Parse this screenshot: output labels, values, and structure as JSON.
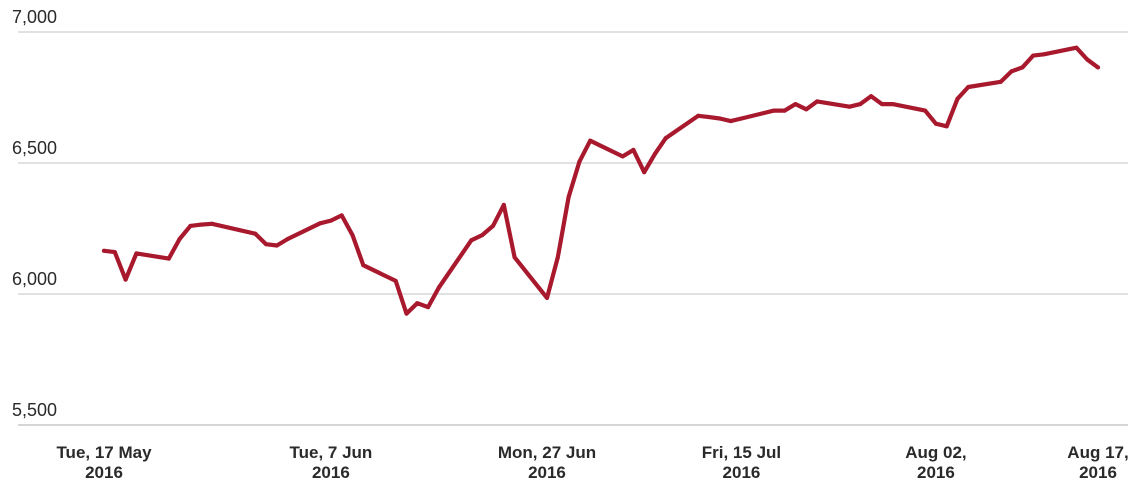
{
  "chart_data": {
    "type": "line",
    "title": "",
    "xlabel": "",
    "ylabel": "",
    "ylim": [
      5500,
      7000
    ],
    "grid": true,
    "legend": "none",
    "y_ticks": [
      "5,500",
      "6,000",
      "6,500",
      "7,000"
    ],
    "y_tick_values": [
      5500,
      6000,
      6500,
      7000
    ],
    "x_ticks": [
      {
        "line1": "Tue, 17 May",
        "line2": "2016",
        "date": "2016-05-17"
      },
      {
        "line1": "Tue, 7 Jun",
        "line2": "2016",
        "date": "2016-06-07"
      },
      {
        "line1": "Mon, 27 Jun",
        "line2": "2016",
        "date": "2016-06-27"
      },
      {
        "line1": "Fri, 15 Jul",
        "line2": "2016",
        "date": "2016-07-15"
      },
      {
        "line1": "Aug 02,",
        "line2": "2016",
        "date": "2016-08-02"
      },
      {
        "line1": "Aug 17,",
        "line2": "2016",
        "date": "2016-08-17"
      }
    ],
    "colors": {
      "line": "#a8192e",
      "grid": "#d7d7d7",
      "text": "#2a2a2a"
    },
    "series": [
      {
        "x": [
          "2016-05-17",
          "2016-05-18",
          "2016-05-19",
          "2016-05-20",
          "2016-05-23",
          "2016-05-24",
          "2016-05-25",
          "2016-05-26",
          "2016-05-27",
          "2016-05-31",
          "2016-06-01",
          "2016-06-02",
          "2016-06-03",
          "2016-06-06",
          "2016-06-07",
          "2016-06-08",
          "2016-06-09",
          "2016-06-10",
          "2016-06-13",
          "2016-06-14",
          "2016-06-15",
          "2016-06-16",
          "2016-06-17",
          "2016-06-20",
          "2016-06-21",
          "2016-06-22",
          "2016-06-23",
          "2016-06-24",
          "2016-06-27",
          "2016-06-28",
          "2016-06-29",
          "2016-06-30",
          "2016-07-01",
          "2016-07-04",
          "2016-07-05",
          "2016-07-06",
          "2016-07-07",
          "2016-07-08",
          "2016-07-11",
          "2016-07-12",
          "2016-07-13",
          "2016-07-14",
          "2016-07-15",
          "2016-07-18",
          "2016-07-19",
          "2016-07-20",
          "2016-07-21",
          "2016-07-22",
          "2016-07-25",
          "2016-07-26",
          "2016-07-27",
          "2016-07-28",
          "2016-07-29",
          "2016-08-01",
          "2016-08-02",
          "2016-08-03",
          "2016-08-04",
          "2016-08-05",
          "2016-08-08",
          "2016-08-09",
          "2016-08-10",
          "2016-08-11",
          "2016-08-12",
          "2016-08-15",
          "2016-08-16",
          "2016-08-17"
        ],
        "values": [
          6165,
          6160,
          6055,
          6155,
          6135,
          6210,
          6260,
          6265,
          6268,
          6230,
          6190,
          6185,
          6210,
          6270,
          6280,
          6300,
          6225,
          6110,
          6050,
          5925,
          5965,
          5950,
          6025,
          6205,
          6225,
          6260,
          6340,
          6140,
          5985,
          6140,
          6370,
          6505,
          6585,
          6525,
          6550,
          6465,
          6535,
          6595,
          6680,
          6675,
          6670,
          6660,
          6670,
          6700,
          6700,
          6725,
          6705,
          6735,
          6715,
          6725,
          6755,
          6725,
          6725,
          6700,
          6650,
          6640,
          6745,
          6790,
          6810,
          6850,
          6865,
          6910,
          6915,
          6940,
          6895,
          6865
        ]
      }
    ]
  }
}
